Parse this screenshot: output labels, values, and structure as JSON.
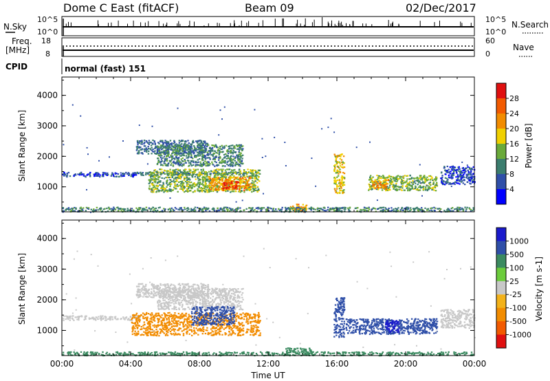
{
  "header": {
    "station": "Dome C East (fitACF)",
    "beam": "Beam 09",
    "date": "02/Dec/2017"
  },
  "top_panels": {
    "nsky_label": "N.Sky",
    "nsky_ticks": [
      "10^5",
      "10^0"
    ],
    "nsearch_label": "N.Search",
    "nsearch_ticks": [
      "10^5",
      "10^0"
    ],
    "freq_label": "Freq.",
    "freq_unit": "[MHz]",
    "freq_ticks": [
      "18",
      "8"
    ],
    "nave_label": "Nave",
    "nave_ticks": [
      "60",
      "0"
    ],
    "cpid_label": "CPID",
    "cpid_text": "normal (fast) 151"
  },
  "colors": {
    "power_scale": [
      "#0000ff",
      "#2f4fa8",
      "#3b7d6e",
      "#6aaa3a",
      "#f0d000",
      "#f28c00",
      "#f25a00",
      "#e01010"
    ],
    "velocity_scale": [
      "#e01010",
      "#f25a00",
      "#f28c00",
      "#f3b21a",
      "#c8c8c8",
      "#6ccc3c",
      "#3b8a60",
      "#2f4fa8",
      "#1a1acc"
    ]
  },
  "chart_data": [
    {
      "type": "heatmap",
      "title": "Power",
      "ylabel": "Slant Range [km]",
      "yticks": [
        "4000",
        "3000",
        "2000",
        "1000"
      ],
      "ylim": [
        180,
        4600
      ],
      "colorbar_label": "Power [dB]",
      "colorbar_ticks": [
        "28",
        "24",
        "20",
        "16",
        "12",
        "8",
        "4"
      ],
      "colorbar_range": [
        0,
        32
      ],
      "regions": [
        {
          "t": [
            4.0,
            10.8
          ],
          "r": [
            1400,
            1500
          ],
          "value": 8
        },
        {
          "t": [
            4.3,
            8.5
          ],
          "r": [
            2100,
            2550
          ],
          "value": 8
        },
        {
          "t": [
            5.5,
            10.5
          ],
          "r": [
            1700,
            2400
          ],
          "value": 10
        },
        {
          "t": [
            5.0,
            11.5
          ],
          "r": [
            850,
            1600
          ],
          "value": 14
        },
        {
          "t": [
            8.5,
            11.0
          ],
          "r": [
            900,
            1350
          ],
          "value": 22
        },
        {
          "t": [
            9.3,
            10.3
          ],
          "r": [
            950,
            1200
          ],
          "value": 28
        },
        {
          "t": [
            0.0,
            4.5
          ],
          "r": [
            1350,
            1500
          ],
          "value": 6
        },
        {
          "t": [
            13.2,
            14.2
          ],
          "r": [
            200,
            450
          ],
          "value": 22
        },
        {
          "t": [
            15.8,
            16.4
          ],
          "r": [
            800,
            2100
          ],
          "value": 18
        },
        {
          "t": [
            17.8,
            21.8
          ],
          "r": [
            900,
            1400
          ],
          "value": 14
        },
        {
          "t": [
            18.0,
            19.0
          ],
          "r": [
            950,
            1250
          ],
          "value": 22
        },
        {
          "t": [
            22.0,
            24.0
          ],
          "r": [
            1100,
            1700
          ],
          "value": 6
        },
        {
          "t": [
            0.0,
            24.0
          ],
          "r": [
            200,
            350
          ],
          "value": 10
        }
      ]
    },
    {
      "type": "heatmap",
      "title": "Velocity",
      "ylabel": "Slant Range [km]",
      "xlabel": "Time UT",
      "xticks": [
        "00:00",
        "04:00",
        "08:00",
        "12:00",
        "16:00",
        "20:00",
        "00:00"
      ],
      "yticks": [
        "4000",
        "3000",
        "2000",
        "1000"
      ],
      "ylim": [
        180,
        4600
      ],
      "colorbar_label": "Velocity [m s-1]",
      "colorbar_ticks": [
        "1000",
        "500",
        "100",
        "25",
        "-25",
        "-100",
        "-500",
        "-1000"
      ],
      "regions": [
        {
          "t": [
            0.0,
            4.5
          ],
          "r": [
            1350,
            1500
          ],
          "value": 0
        },
        {
          "t": [
            4.3,
            8.5
          ],
          "r": [
            2100,
            2550
          ],
          "value": 0
        },
        {
          "t": [
            5.5,
            10.5
          ],
          "r": [
            1700,
            2400
          ],
          "value": 0
        },
        {
          "t": [
            4.0,
            11.5
          ],
          "r": [
            850,
            1600
          ],
          "value": -80
        },
        {
          "t": [
            7.5,
            10.0
          ],
          "r": [
            1200,
            1800
          ],
          "value": 150
        },
        {
          "t": [
            13.0,
            14.5
          ],
          "r": [
            200,
            450
          ],
          "value": 80
        },
        {
          "t": [
            15.8,
            16.4
          ],
          "r": [
            800,
            2100
          ],
          "value": 300
        },
        {
          "t": [
            16.5,
            21.8
          ],
          "r": [
            900,
            1400
          ],
          "value": 300
        },
        {
          "t": [
            18.8,
            19.6
          ],
          "r": [
            950,
            1350
          ],
          "value": 900
        },
        {
          "t": [
            22.0,
            24.0
          ],
          "r": [
            1100,
            1700
          ],
          "value": 0
        },
        {
          "t": [
            0.0,
            24.0
          ],
          "r": [
            200,
            320
          ],
          "value": 60
        }
      ]
    }
  ]
}
